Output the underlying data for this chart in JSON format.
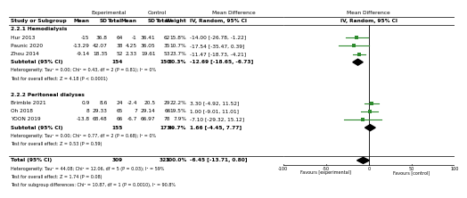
{
  "subgroup1_label": "2.2.1 Hemodialysis",
  "subgroup2_label": "2.2.2 Peritoneal dialyses",
  "studies": [
    {
      "name": "Hur 2013",
      "exp_mean": "-15",
      "exp_sd": "36.8",
      "exp_n": "64",
      "ctrl_mean": "-1",
      "ctrl_sd": "36.41",
      "ctrl_n": "62",
      "weight": "15.8%",
      "ci_text": "-14.00 [-26.78, -1.22]",
      "md": -14.0,
      "ci_low": -26.78,
      "ci_high": -1.22,
      "subgroup": 1
    },
    {
      "name": "Paunic 2020",
      "exp_mean": "-13.29",
      "exp_sd": "42.07",
      "exp_n": "38",
      "ctrl_mean": "4.25",
      "ctrl_sd": "36.05",
      "ctrl_n": "35",
      "weight": "10.7%",
      "ci_text": "-17.54 [-35.47, 0.39]",
      "md": -17.54,
      "ci_low": -35.47,
      "ci_high": 0.39,
      "subgroup": 1
    },
    {
      "name": "Zhou 2014",
      "exp_mean": "-9.14",
      "exp_sd": "18.35",
      "exp_n": "52",
      "ctrl_mean": "2.33",
      "ctrl_sd": "19.61",
      "ctrl_n": "53",
      "weight": "23.7%",
      "ci_text": "-11.47 [-18.73, -4.21]",
      "md": -11.47,
      "ci_low": -18.73,
      "ci_high": -4.21,
      "subgroup": 1
    },
    {
      "name": "Subtotal (95% CI)",
      "exp_mean": null,
      "exp_sd": null,
      "exp_n": "154",
      "ctrl_mean": null,
      "ctrl_sd": null,
      "ctrl_n": "150",
      "weight": "50.3%",
      "ci_text": "-12.69 [-18.65, -6.73]",
      "md": -12.69,
      "ci_low": -18.65,
      "ci_high": -6.73,
      "subgroup": 1,
      "is_subtotal": true
    },
    {
      "name": "Brimble 2021",
      "exp_mean": "0.9",
      "exp_sd": "8.6",
      "exp_n": "24",
      "ctrl_mean": "-2.4",
      "ctrl_sd": "20.5",
      "ctrl_n": "29",
      "weight": "22.2%",
      "ci_text": "3.30 [-4.92, 11.52]",
      "md": 3.3,
      "ci_low": -4.92,
      "ci_high": 11.52,
      "subgroup": 2
    },
    {
      "name": "Oh 2018",
      "exp_mean": "8",
      "exp_sd": "29.33",
      "exp_n": "65",
      "ctrl_mean": "7",
      "ctrl_sd": "29.14",
      "ctrl_n": "66",
      "weight": "19.5%",
      "ci_text": "1.00 [-9.01, 11.01]",
      "md": 1.0,
      "ci_low": -9.01,
      "ci_high": 11.01,
      "subgroup": 2
    },
    {
      "name": "YOON 2019",
      "exp_mean": "-13.8",
      "exp_sd": "68.48",
      "exp_n": "66",
      "ctrl_mean": "-6.7",
      "ctrl_sd": "66.97",
      "ctrl_n": "78",
      "weight": "7.9%",
      "ci_text": "-7.10 [-29.32, 15.12]",
      "md": -7.1,
      "ci_low": -29.32,
      "ci_high": 15.12,
      "subgroup": 2
    },
    {
      "name": "Subtotal (95% CI)",
      "exp_mean": null,
      "exp_sd": null,
      "exp_n": "155",
      "ctrl_mean": null,
      "ctrl_sd": null,
      "ctrl_n": "173",
      "weight": "49.7%",
      "ci_text": "1.66 [-4.45, 7.77]",
      "md": 1.66,
      "ci_low": -4.45,
      "ci_high": 7.77,
      "subgroup": 2,
      "is_subtotal": true
    },
    {
      "name": "Total (95% CI)",
      "exp_mean": null,
      "exp_sd": null,
      "exp_n": "309",
      "ctrl_mean": null,
      "ctrl_sd": null,
      "ctrl_n": "323",
      "weight": "100.0%",
      "ci_text": "-6.45 [-13.71, 0.80]",
      "md": -6.45,
      "ci_low": -13.71,
      "ci_high": 0.8,
      "subgroup": 0,
      "is_total": true
    }
  ],
  "hetero1": "Heterogeneity: Tau² = 0.00; Chi² = 0.43, df = 2 (P = 0.81); I² = 0%",
  "effect1": "Test for overall effect: Z = 4.18 (P < 0.0001)",
  "hetero2": "Heterogeneity: Tau² = 0.00; Chi² = 0.77, df = 2 (P = 0.68); I² = 0%",
  "effect2": "Test for overall effect: Z = 0.53 (P = 0.59)",
  "hetero_total": "Heterogeneity: Tau² = 44.08; Chi² = 12.06, df = 5 (P = 0.03); I² = 59%",
  "effect_total": "Test for overall effect: Z = 1.74 (P = 0.08)",
  "subgroup_diff": "Test for subgroup differences: Chi² = 10.87, df = 1 (P = 0.0010), I² = 90.8%",
  "axis_ticks": [
    -100,
    -50,
    0,
    50,
    100
  ],
  "xlabel_left": "Favours [experimental]",
  "xlabel_right": "Favours [control]",
  "marker_color": "#2d8a2d",
  "diamond_color": "#000000"
}
